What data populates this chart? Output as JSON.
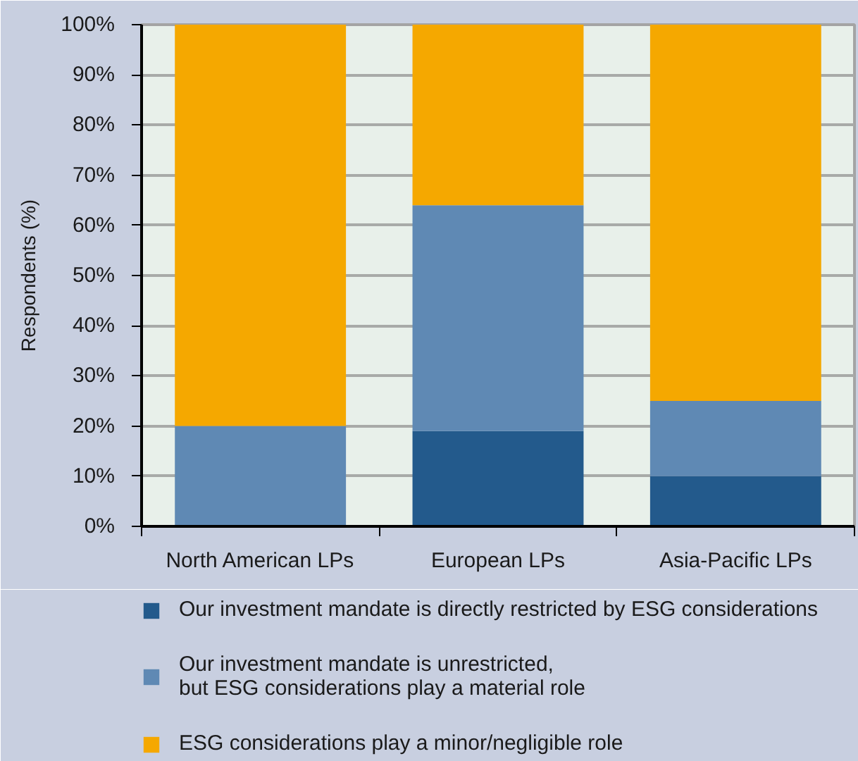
{
  "chart_data": {
    "type": "bar",
    "stacked": true,
    "categories": [
      "North American LPs",
      "European LPs",
      "Asia-Pacific LPs"
    ],
    "series": [
      {
        "name": "Our investment mandate is directly restricted by ESG considerations",
        "color": "#235a8c",
        "values": [
          0,
          19,
          10
        ]
      },
      {
        "name": "Our investment mandate is unrestricted,\nbut ESG considerations play a material role",
        "color": "#5f89b4",
        "values": [
          20,
          45,
          15
        ]
      },
      {
        "name": "ESG considerations play a minor/negligible role",
        "color": "#f5a800",
        "values": [
          80,
          36,
          75
        ]
      }
    ],
    "ylabel": "Respondents (%)",
    "ylim": [
      0,
      100
    ],
    "yticks": [
      {
        "value": 0,
        "label": "0%"
      },
      {
        "value": 10,
        "label": "10%"
      },
      {
        "value": 20,
        "label": "20%"
      },
      {
        "value": 30,
        "label": "30%"
      },
      {
        "value": 40,
        "label": "40%"
      },
      {
        "value": 50,
        "label": "50%"
      },
      {
        "value": 60,
        "label": "60%"
      },
      {
        "value": 70,
        "label": "70%"
      },
      {
        "value": 80,
        "label": "80%"
      },
      {
        "value": 90,
        "label": "90%"
      },
      {
        "value": 100,
        "label": "100%"
      }
    ],
    "grid": "y",
    "legend": "bottom"
  }
}
